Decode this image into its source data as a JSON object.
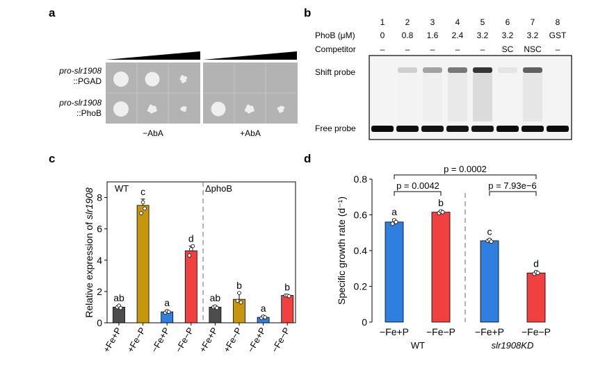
{
  "panels": {
    "a": {
      "label": "a",
      "rows": [
        {
          "name_italic": "pro-slr1908",
          "name_suffix": "::PGAD"
        },
        {
          "name_italic": "pro-slr1908",
          "name_suffix": "::PhoB"
        }
      ],
      "plates": [
        "−AbA",
        "+AbA"
      ],
      "colonies": {
        "minus_aba": [
          [
            1.0,
            0.95,
            0.55
          ],
          [
            1.0,
            0.7,
            0.4
          ]
        ],
        "plus_aba": [
          [
            0.0,
            0.0,
            0.0
          ],
          [
            0.95,
            0.7,
            0.5
          ]
        ]
      }
    },
    "b": {
      "label": "b",
      "lane_numbers": [
        "1",
        "2",
        "3",
        "4",
        "5",
        "6",
        "7",
        "8"
      ],
      "phob_label": "PhoB (μM)",
      "phob_values": [
        "0",
        "0.8",
        "1.6",
        "2.4",
        "3.2",
        "3.2",
        "3.2",
        "GST"
      ],
      "competitor_label": "Competitor",
      "competitor_values": [
        "–",
        "–",
        "–",
        "–",
        "–",
        "SC",
        "NSC",
        "–"
      ],
      "shift_probe_label": "Shift probe",
      "free_probe_label": "Free probe",
      "shift_intensity": [
        0.0,
        0.15,
        0.35,
        0.55,
        0.85,
        0.05,
        0.65,
        0.0
      ],
      "free_intensity": [
        1.0,
        0.9,
        0.85,
        0.8,
        0.8,
        0.95,
        0.9,
        0.95
      ]
    },
    "c": {
      "label": "c"
    },
    "d": {
      "label": "d"
    }
  },
  "chart_data": [
    {
      "type": "bar",
      "panel": "c",
      "ylabel_prefix": "Relative expression of ",
      "ylabel_italic": "slr1908",
      "ylim": [
        0,
        9
      ],
      "yticks": [
        0,
        2,
        4,
        6,
        8
      ],
      "group_labels": [
        "WT",
        "ΔphoB"
      ],
      "categories": [
        "+Fe+P",
        "+Fe−P",
        "−Fe+P",
        "−Fe−P",
        "+Fe+P",
        "+Fe−P",
        "−Fe+P",
        "−Fe−P"
      ],
      "values": [
        1.0,
        7.5,
        0.7,
        4.6,
        1.0,
        1.5,
        0.35,
        1.75
      ],
      "errors": [
        0.1,
        0.4,
        0.1,
        0.3,
        0.1,
        0.4,
        0.1,
        0.05
      ],
      "points": [
        [
          1.0,
          1.1,
          0.95
        ],
        [
          7.0,
          7.7,
          7.3
        ],
        [
          0.65,
          0.75,
          0.7
        ],
        [
          4.3,
          4.7,
          4.9
        ],
        [
          1.0,
          1.05,
          0.95
        ],
        [
          1.4,
          1.9,
          1.3
        ],
        [
          0.3,
          0.4,
          0.35
        ],
        [
          1.75,
          1.75,
          1.7
        ]
      ],
      "letters": [
        "ab",
        "c",
        "a",
        "d",
        "ab",
        "b",
        "a",
        "b"
      ],
      "colors": [
        "#4d4d4d",
        "#c8960c",
        "#2f7fe0",
        "#f04040",
        "#4d4d4d",
        "#c8960c",
        "#2f7fe0",
        "#f04040"
      ]
    },
    {
      "type": "bar",
      "panel": "d",
      "ylabel": "Specific growth rate (d⁻¹)",
      "ylim": [
        0,
        0.8
      ],
      "yticks": [
        "0",
        "0.2",
        "0.4",
        "0.6",
        "0.8"
      ],
      "categories": [
        "−Fe+P",
        "−Fe−P",
        "−Fe+P",
        "−Fe−P"
      ],
      "group_labels": [
        "WT",
        "slr1908KD"
      ],
      "values": [
        0.56,
        0.615,
        0.455,
        0.275
      ],
      "errors": [
        0.015,
        0.01,
        0.01,
        0.01
      ],
      "points": [
        [
          0.55,
          0.57,
          0.56
        ],
        [
          0.61,
          0.62,
          0.615
        ],
        [
          0.455,
          0.46,
          0.45
        ],
        [
          0.27,
          0.28,
          0.275
        ]
      ],
      "letters": [
        "a",
        "b",
        "c",
        "d"
      ],
      "colors": [
        "#2f7fe0",
        "#f04040",
        "#2f7fe0",
        "#f04040"
      ],
      "comparisons": [
        {
          "from": 0,
          "to": 1,
          "label": "p = 0.0042"
        },
        {
          "from": 0,
          "to": 3,
          "label": "p = 0.0002"
        },
        {
          "from": 2,
          "to": 3,
          "label": "p = 7.93e−6"
        }
      ]
    }
  ]
}
